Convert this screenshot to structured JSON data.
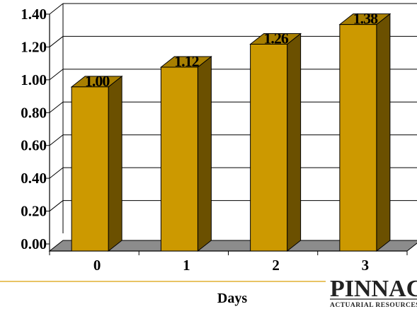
{
  "chart_data": {
    "type": "bar",
    "categories": [
      "0",
      "1",
      "2",
      "3"
    ],
    "values": [
      1.0,
      1.12,
      1.26,
      1.38
    ],
    "data_labels": [
      "1.00",
      "1.12",
      "1.26",
      "1.38"
    ],
    "title": "",
    "xlabel": "Days",
    "ylabel": "",
    "ylim": [
      0,
      1.4
    ],
    "yticks": [
      "0.00",
      "0.20",
      "0.40",
      "0.60",
      "0.80",
      "1.00",
      "1.20",
      "1.40"
    ],
    "grid": true,
    "legend": "none",
    "style": "3d-column"
  },
  "colors": {
    "bar_front": "#cc9900",
    "bar_side": "#6b5000",
    "bar_top": "#a87f00",
    "floor": "#8c8c8c",
    "divider": "#e0b030"
  },
  "logo": {
    "name": "PINNACLE",
    "tagline": "ACTUARIAL RESOURCES, INC."
  }
}
